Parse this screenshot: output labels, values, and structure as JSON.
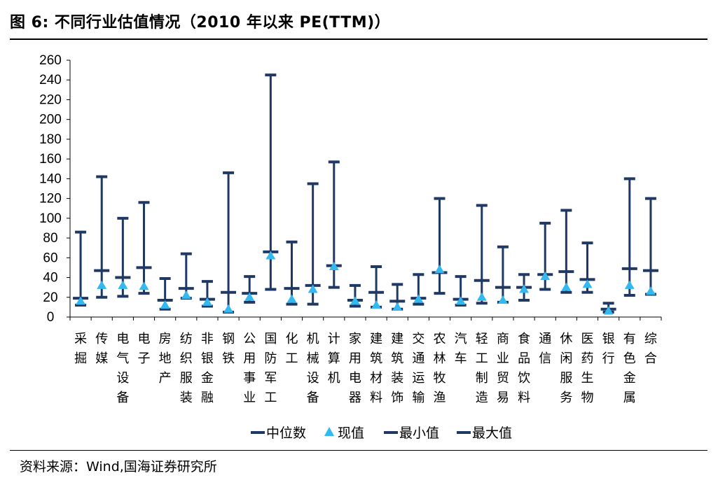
{
  "header": {
    "title": "图 6:  不同行业估值情况（2010 年以来 PE(TTM)）"
  },
  "footer": {
    "source": "资料来源：Wind,国海证券研究所"
  },
  "colors": {
    "range": "#1f3864",
    "current": "#33b8f0"
  },
  "chart_data": {
    "type": "box",
    "title": "",
    "xlabel": "",
    "ylabel": "",
    "ylim": [
      0,
      260
    ],
    "yticks": [
      0,
      20,
      40,
      60,
      80,
      100,
      120,
      140,
      160,
      180,
      200,
      220,
      240,
      260
    ],
    "grid": false,
    "legend_position": "bottom",
    "legend": [
      "中位数",
      "现值",
      "最小值",
      "最大值"
    ],
    "categories": [
      "采掘",
      "传媒",
      "电气设备",
      "电子",
      "房地产",
      "纺织服装",
      "非银金融",
      "钢铁",
      "公用事业",
      "国防军工",
      "化工",
      "机械设备",
      "计算机",
      "家用电器",
      "建筑材料",
      "建筑装饰",
      "交通运输",
      "农林牧渔",
      "汽车",
      "轻工制造",
      "商业贸易",
      "食品饮料",
      "通信",
      "休闲服务",
      "医药生物",
      "银行",
      "有色金属",
      "综合"
    ],
    "series": [
      {
        "name": "中位数",
        "values": [
          19,
          47,
          40,
          50,
          17,
          29,
          18,
          25,
          24,
          66,
          29,
          32,
          52,
          17,
          25,
          16,
          19,
          45,
          18,
          37,
          30,
          30,
          43,
          46,
          38,
          8,
          49,
          47
        ]
      },
      {
        "name": "现值",
        "values": [
          16,
          32,
          32,
          31,
          12,
          22,
          15,
          8,
          20,
          62,
          18,
          28,
          51,
          16,
          12,
          10,
          18,
          48,
          16,
          20,
          17,
          28,
          41,
          30,
          33,
          6,
          32,
          26
        ]
      },
      {
        "name": "最小值",
        "values": [
          12,
          20,
          21,
          24,
          8,
          19,
          11,
          5,
          15,
          28,
          13,
          13,
          30,
          11,
          10,
          8,
          13,
          24,
          12,
          14,
          15,
          17,
          28,
          25,
          25,
          5,
          22,
          23
        ]
      },
      {
        "name": "最大值",
        "values": [
          86,
          142,
          100,
          116,
          39,
          64,
          36,
          146,
          41,
          245,
          76,
          135,
          157,
          32,
          51,
          33,
          43,
          120,
          41,
          113,
          71,
          43,
          95,
          108,
          75,
          14,
          140,
          120
        ]
      }
    ]
  }
}
